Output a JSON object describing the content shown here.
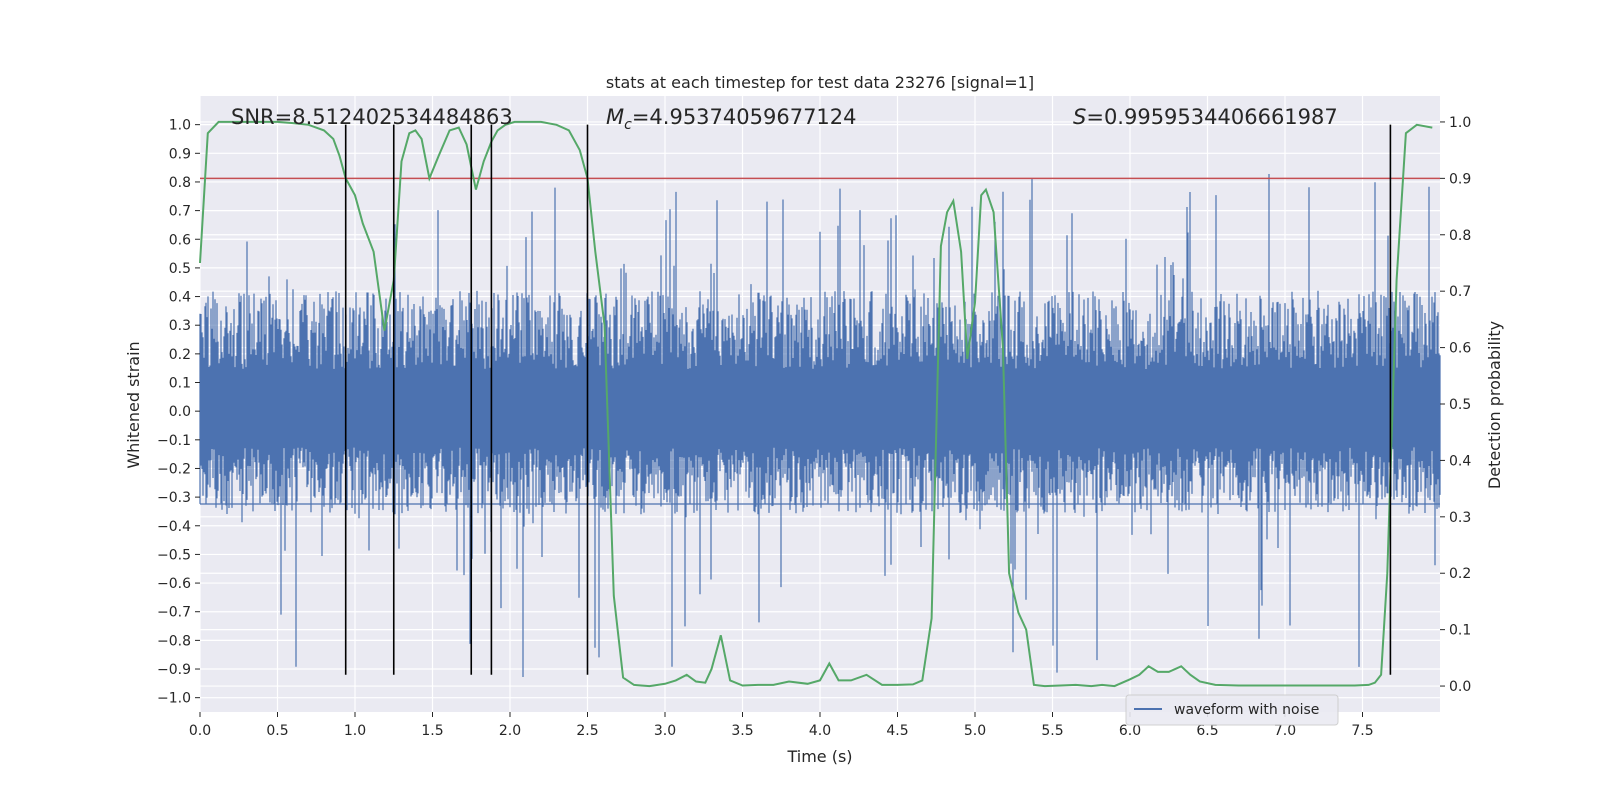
{
  "chart_data": {
    "type": "line",
    "title": "stats at each timestep for test data 23276 [signal=1]",
    "xlabel": "Time (s)",
    "ylabel": "Whitened strain",
    "y2label": "Detection probability",
    "xlim": [
      0.0,
      8.0
    ],
    "ylim": [
      -1.05,
      1.1
    ],
    "y2lim": [
      -0.046,
      1.046
    ],
    "xticks": [
      "0.0",
      "0.5",
      "1.0",
      "1.5",
      "2.0",
      "2.5",
      "3.0",
      "3.5",
      "4.0",
      "4.5",
      "5.0",
      "5.5",
      "6.0",
      "6.5",
      "7.0",
      "7.5"
    ],
    "yticks": [
      "1.0",
      "0.9",
      "0.8",
      "0.7",
      "0.6",
      "0.5",
      "0.4",
      "0.3",
      "0.2",
      "0.1",
      "0.0",
      "−0.1",
      "−0.2",
      "−0.3",
      "−0.4",
      "−0.5",
      "−0.6",
      "−0.7",
      "−0.8",
      "−0.9",
      "−1.0"
    ],
    "y2ticks": [
      "1.0",
      "0.9",
      "0.8",
      "0.7",
      "0.6",
      "0.5",
      "0.4",
      "0.3",
      "0.2",
      "0.1",
      "0.0"
    ],
    "annotations": {
      "snr": "SNR=8.512402534484863",
      "mc_symbol": "M",
      "mc_sub": "c",
      "mc_value": "=4.95374059677124",
      "s_symbol": "S",
      "s_value": "=0.9959534406661987"
    },
    "legend": {
      "label": "waveform with noise",
      "placement": "lower-right"
    },
    "threshold": {
      "value": 0.9,
      "axis": "detection probability",
      "color": "#c44e52"
    },
    "event_lines_x": [
      0.94,
      1.25,
      1.75,
      1.88,
      2.5,
      7.68
    ],
    "event_line_range": [
      -0.92,
      1.0
    ],
    "noise_series": {
      "name": "waveform with noise",
      "color": "#4c72b0",
      "samples": 8192,
      "envelope_top": 0.42,
      "envelope_bottom": -0.36,
      "max": 0.84,
      "min": -0.93
    },
    "probability_series": {
      "color": "#55a868",
      "x": [
        0.0,
        0.05,
        0.12,
        0.2,
        0.3,
        0.4,
        0.5,
        0.6,
        0.7,
        0.8,
        0.86,
        0.9,
        0.94,
        1.0,
        1.05,
        1.12,
        1.19,
        1.25,
        1.3,
        1.35,
        1.39,
        1.43,
        1.48,
        1.54,
        1.61,
        1.67,
        1.72,
        1.78,
        1.83,
        1.88,
        1.92,
        1.97,
        2.03,
        2.1,
        2.2,
        2.3,
        2.38,
        2.45,
        2.5,
        2.55,
        2.61,
        2.67,
        2.73,
        2.8,
        2.9,
        3.0,
        3.07,
        3.14,
        3.2,
        3.26,
        3.3,
        3.36,
        3.42,
        3.5,
        3.6,
        3.7,
        3.8,
        3.92,
        4.0,
        4.06,
        4.12,
        4.2,
        4.3,
        4.4,
        4.5,
        4.6,
        4.66,
        4.72,
        4.78,
        4.82,
        4.86,
        4.91,
        4.95,
        5.0,
        5.04,
        5.07,
        5.12,
        5.18,
        5.22,
        5.28,
        5.33,
        5.38,
        5.45,
        5.55,
        5.65,
        5.75,
        5.82,
        5.9,
        6.0,
        6.06,
        6.12,
        6.18,
        6.25,
        6.33,
        6.39,
        6.45,
        6.55,
        6.7,
        6.9,
        7.1,
        7.3,
        7.45,
        7.54,
        7.58,
        7.62,
        7.66,
        7.72,
        7.78,
        7.85,
        7.95
      ],
      "y": [
        0.75,
        0.98,
        1.0,
        1.0,
        1.0,
        1.0,
        1.0,
        0.998,
        0.995,
        0.985,
        0.97,
        0.94,
        0.9,
        0.87,
        0.82,
        0.77,
        0.63,
        0.72,
        0.93,
        0.98,
        0.985,
        0.97,
        0.9,
        0.94,
        0.985,
        0.99,
        0.96,
        0.88,
        0.93,
        0.965,
        0.985,
        0.995,
        1.0,
        1.0,
        1.0,
        0.995,
        0.985,
        0.95,
        0.9,
        0.77,
        0.64,
        0.16,
        0.015,
        0.002,
        0.0,
        0.004,
        0.01,
        0.02,
        0.008,
        0.006,
        0.03,
        0.09,
        0.01,
        0.001,
        0.002,
        0.002,
        0.008,
        0.004,
        0.01,
        0.04,
        0.01,
        0.01,
        0.02,
        0.002,
        0.002,
        0.003,
        0.01,
        0.12,
        0.78,
        0.84,
        0.86,
        0.77,
        0.58,
        0.68,
        0.87,
        0.88,
        0.84,
        0.6,
        0.2,
        0.13,
        0.1,
        0.002,
        0.0,
        0.001,
        0.002,
        0.0,
        0.002,
        0.0,
        0.012,
        0.02,
        0.035,
        0.025,
        0.025,
        0.035,
        0.02,
        0.008,
        0.002,
        0.001,
        0.001,
        0.001,
        0.001,
        0.001,
        0.002,
        0.006,
        0.02,
        0.2,
        0.72,
        0.98,
        0.995,
        0.99
      ]
    }
  }
}
